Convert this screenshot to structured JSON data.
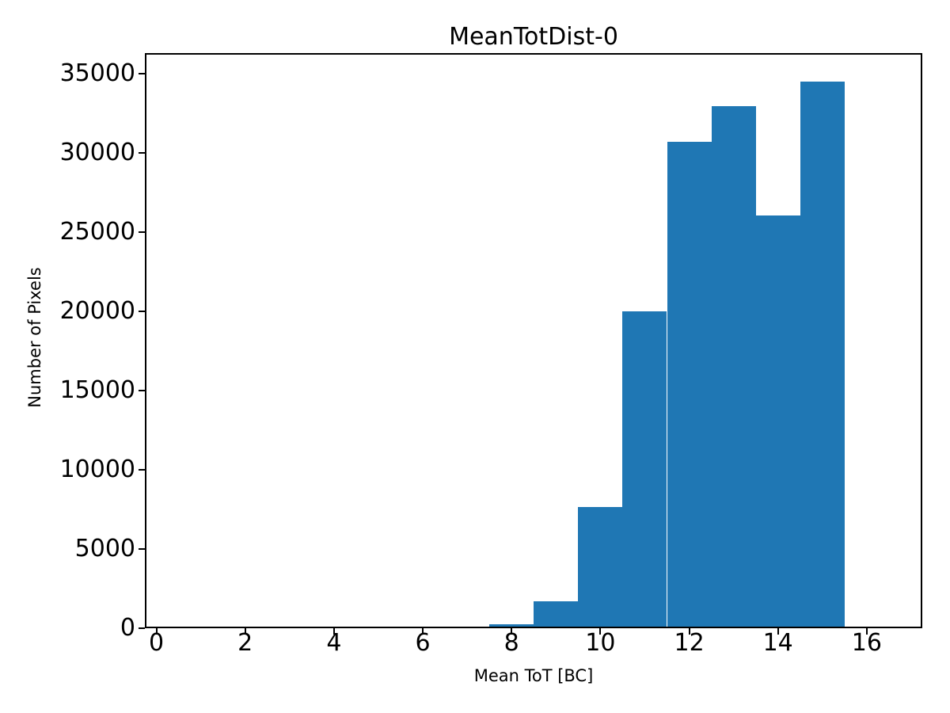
{
  "chart_data": {
    "type": "bar",
    "subtype": "histogram",
    "title": "MeanTotDist-0",
    "xlabel": "Mean ToT [BC]",
    "ylabel": "Number of Pixels",
    "bin_edges": [
      7.5,
      8.5,
      9.5,
      10.5,
      11.5,
      12.5,
      13.5,
      14.5,
      15.5
    ],
    "values": [
      250,
      1700,
      7650,
      20000,
      30700,
      32950,
      26050,
      34500
    ],
    "xticks": [
      0,
      2,
      4,
      6,
      8,
      10,
      12,
      14,
      16
    ],
    "yticks": [
      0,
      5000,
      10000,
      15000,
      20000,
      25000,
      30000,
      35000
    ],
    "xlim": [
      -0.26,
      17.25
    ],
    "ylim": [
      0,
      36300
    ],
    "bar_color": "#1f77b4",
    "axis_color": "#000000",
    "background_color": "#ffffff",
    "grid": false,
    "legend": null
  }
}
